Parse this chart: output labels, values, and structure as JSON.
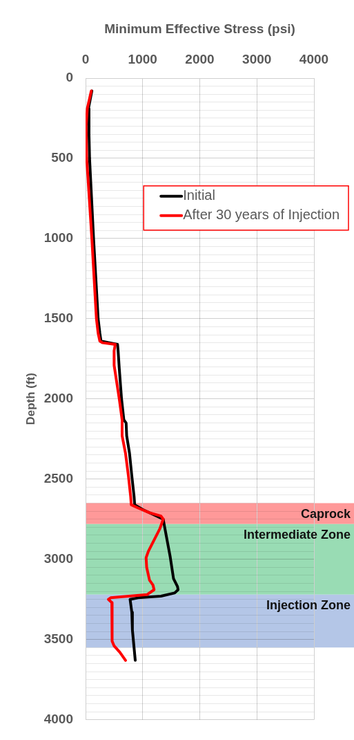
{
  "chart_data": {
    "type": "line",
    "xlabel": "Minimum Effective Stress (psi)",
    "ylabel": "Depth (ft)",
    "xlim": [
      0,
      4000
    ],
    "xticks": [
      0,
      1000,
      2000,
      3000,
      4000
    ],
    "ylim": [
      4000,
      0
    ],
    "yticks": [
      0,
      {
        "value": 50,
        "label": null
      },
      {
        "value": 100,
        "label": null
      },
      {
        "value": 150,
        "label": null
      },
      {
        "value": 200,
        "label": null
      },
      {
        "value": 250,
        "label": null
      },
      {
        "value": 300,
        "label": null
      },
      {
        "value": 350,
        "label": null
      },
      {
        "value": 400,
        "label": null
      },
      {
        "value": 450,
        "label": null
      },
      500,
      {
        "value": 550,
        "label": null
      },
      {
        "value": 600,
        "label": null
      },
      {
        "value": 650,
        "label": null
      },
      {
        "value": 700,
        "label": null
      },
      {
        "value": 750,
        "label": null
      },
      {
        "value": 800,
        "label": null
      },
      {
        "value": 850,
        "label": null
      },
      {
        "value": 900,
        "label": null
      },
      {
        "value": 950,
        "label": null
      },
      1000,
      {
        "value": 1050,
        "label": null
      },
      {
        "value": 1100,
        "label": null
      },
      {
        "value": 1150,
        "label": null
      },
      {
        "value": 1200,
        "label": null
      },
      {
        "value": 1250,
        "label": null
      },
      {
        "value": 1300,
        "label": null
      },
      {
        "value": 1350,
        "label": null
      },
      {
        "value": 1400,
        "label": null
      },
      {
        "value": 1450,
        "label": null
      },
      1500,
      {
        "value": 1550,
        "label": null
      },
      {
        "value": 1600,
        "label": null
      },
      {
        "value": 1650,
        "label": null
      },
      {
        "value": 1700,
        "label": null
      },
      {
        "value": 1750,
        "label": null
      },
      {
        "value": 1800,
        "label": null
      },
      {
        "value": 1850,
        "label": null
      },
      {
        "value": 1900,
        "label": null
      },
      {
        "value": 1950,
        "label": null
      },
      2000,
      {
        "value": 2050,
        "label": null
      },
      {
        "value": 2100,
        "label": null
      },
      {
        "value": 2150,
        "label": null
      },
      {
        "value": 2200,
        "label": null
      },
      {
        "value": 2250,
        "label": null
      },
      {
        "value": 2300,
        "label": null
      },
      {
        "value": 2350,
        "label": null
      },
      {
        "value": 2400,
        "label": null
      },
      {
        "value": 2450,
        "label": null
      },
      2500,
      {
        "value": 2550,
        "label": null
      },
      {
        "value": 2600,
        "label": null
      },
      {
        "value": 2650,
        "label": null
      },
      {
        "value": 2700,
        "label": null
      },
      {
        "value": 2750,
        "label": null
      },
      {
        "value": 2800,
        "label": null
      },
      {
        "value": 2850,
        "label": null
      },
      {
        "value": 2900,
        "label": null
      },
      {
        "value": 2950,
        "label": null
      },
      3000,
      {
        "value": 3050,
        "label": null
      },
      {
        "value": 3100,
        "label": null
      },
      {
        "value": 3150,
        "label": null
      },
      {
        "value": 3200,
        "label": null
      },
      {
        "value": 3250,
        "label": null
      },
      {
        "value": 3300,
        "label": null
      },
      {
        "value": 3350,
        "label": null
      },
      {
        "value": 3400,
        "label": null
      },
      {
        "value": 3450,
        "label": null
      },
      3500,
      {
        "value": 3550,
        "label": null
      },
      {
        "value": 3600,
        "label": null
      },
      {
        "value": 3650,
        "label": null
      },
      {
        "value": 3700,
        "label": null
      },
      {
        "value": 3750,
        "label": null
      },
      {
        "value": 3800,
        "label": null
      },
      {
        "value": 3850,
        "label": null
      },
      {
        "value": 3900,
        "label": null
      },
      {
        "value": 3950,
        "label": null
      },
      4000
    ],
    "grid": true,
    "legend": "top right",
    "marker": "none",
    "series": [
      {
        "name": "Initial",
        "color": "#000000",
        "x": [
          110,
          50,
          60,
          70,
          140,
          220,
          250,
          270,
          420,
          560,
          570,
          590,
          630,
          670,
          710,
          720,
          770,
          810,
          850,
          860,
          1000,
          1360,
          1380,
          1480,
          1540,
          1610,
          1620,
          1560,
          1320,
          920,
          780,
          810,
          820,
          870
        ],
        "values": [
          80,
          190,
          350,
          500,
          1000,
          1500,
          1590,
          1640,
          1650,
          1660,
          1700,
          1810,
          2000,
          2130,
          2150,
          2230,
          2340,
          2480,
          2610,
          2660,
          2690,
          2750,
          2790,
          2980,
          3120,
          3170,
          3190,
          3210,
          3230,
          3240,
          3250,
          3330,
          3440,
          3630
        ]
      },
      {
        "name": "After 30 years of Injection",
        "color": "#ff0000",
        "x": [
          100,
          30,
          10,
          20,
          110,
          190,
          220,
          250,
          300,
          520,
          500,
          500,
          590,
          640,
          640,
          700,
          750,
          790,
          800,
          920,
          1120,
          1320,
          1360,
          1300,
          1200,
          1100,
          1060,
          1070,
          1120,
          1180,
          1200,
          1080,
          760,
          440,
          400,
          460,
          470,
          460,
          500,
          600,
          700
        ],
        "values": [
          80,
          190,
          300,
          500,
          1000,
          1500,
          1590,
          1640,
          1650,
          1660,
          1700,
          1790,
          2000,
          2130,
          2230,
          2340,
          2480,
          2610,
          2660,
          2680,
          2710,
          2730,
          2750,
          2810,
          2880,
          2950,
          2990,
          3050,
          3130,
          3160,
          3190,
          3220,
          3230,
          3240,
          3250,
          3270,
          3370,
          3510,
          3540,
          3580,
          3630
        ]
      }
    ],
    "bands": [
      {
        "axis": "y",
        "from": 2650,
        "to": 2780,
        "label": "Caprock",
        "color": "#ff9999"
      },
      {
        "axis": "y",
        "from": 2780,
        "to": 3220,
        "label": "Intermediate Zone",
        "color": "#99dcb4"
      },
      {
        "axis": "y",
        "from": 3220,
        "to": 3550,
        "label": "Injection Zone",
        "color": "#b4c6e7"
      }
    ]
  }
}
